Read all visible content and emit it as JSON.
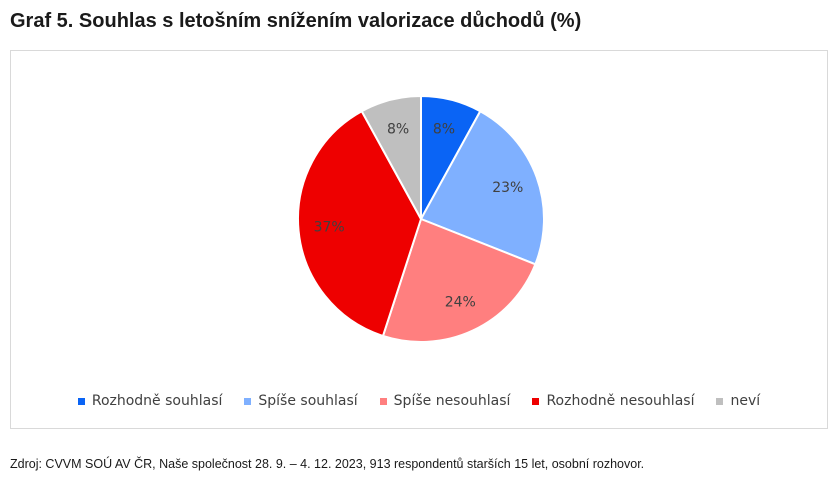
{
  "title": "Graf 5. Souhlas s letošním snížením valorizace důchodů (%)",
  "source": "Zdroj: CVVM SOÚ AV ČR, Naše společnost 28. 9. – 4. 12. 2023, 913 respondentů starších 15 let, osobní rozhovor.",
  "chart_data": {
    "type": "pie",
    "title": "Graf 5. Souhlas s letošním snížením valorizace důchodů (%)",
    "categories": [
      "Rozhodně souhlasí",
      "Spíše souhlasí",
      "Spíše nesouhlasí",
      "Rozhodně nesouhlasí",
      "neví"
    ],
    "values": [
      8,
      23,
      24,
      37,
      8
    ],
    "labels": [
      "8%",
      "23%",
      "24%",
      "37%",
      "8%"
    ],
    "colors": [
      "#0a64f5",
      "#7fb0ff",
      "#ff7f7f",
      "#ee0000",
      "#bfbfbf"
    ],
    "legend_position": "bottom"
  }
}
